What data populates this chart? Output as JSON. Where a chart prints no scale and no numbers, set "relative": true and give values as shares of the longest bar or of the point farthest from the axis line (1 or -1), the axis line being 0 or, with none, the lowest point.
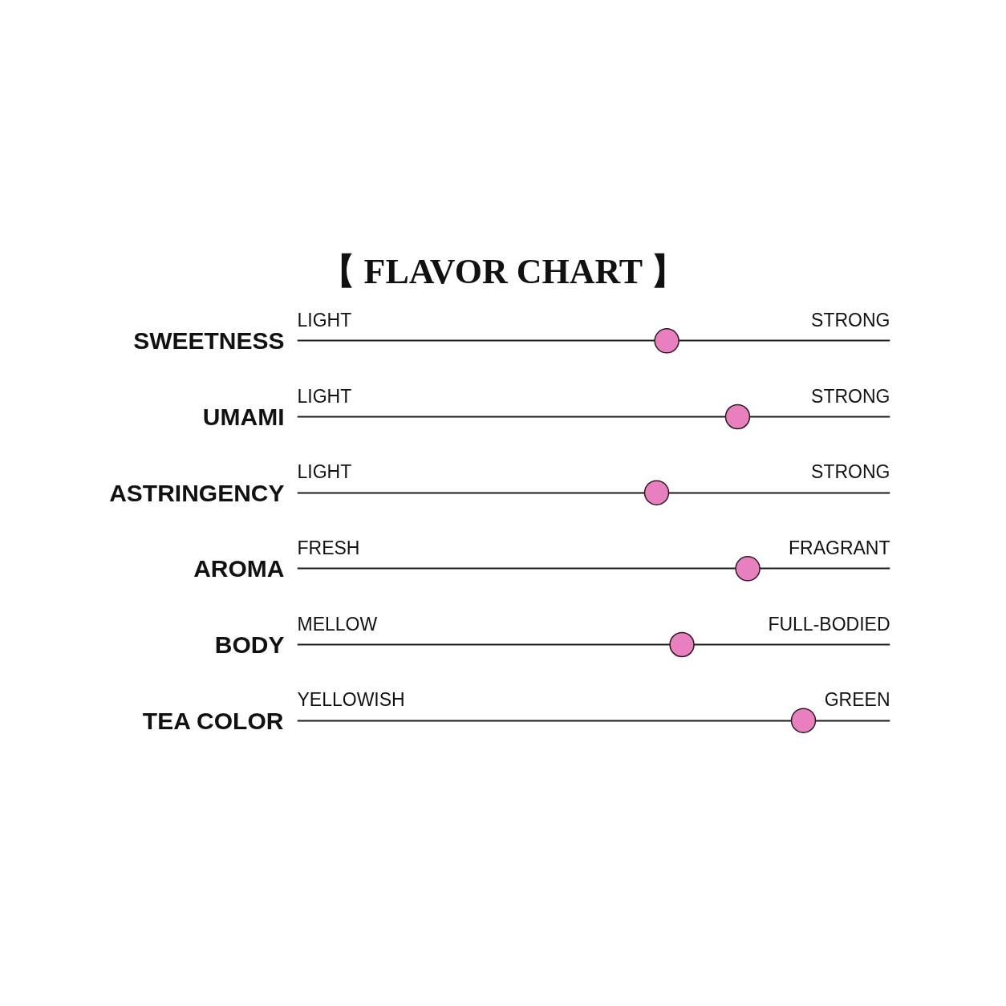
{
  "chart_data": {
    "type": "scatter",
    "title": "【 FLAVOR CHART 】",
    "orientation": "horizontal",
    "relative": true,
    "grid": "y",
    "categories": [
      "SWEETNESS",
      "UMAMI",
      "ASTRINGENCY",
      "AROMA",
      "BODY",
      "TEA COLOR"
    ],
    "values": [
      0.73,
      0.87,
      0.71,
      0.89,
      0.76,
      1
    ],
    "color": "#e87fbf",
    "marker": "circle",
    "annotations": [
      "LIGHT",
      "STRONG",
      "LIGHT",
      "STRONG",
      "LIGHT",
      "STRONG",
      "FRESH",
      "FRAGRANT",
      "MELLOW",
      "FULL-BODIED",
      "YELLOWISH",
      "GREEN"
    ]
  }
}
